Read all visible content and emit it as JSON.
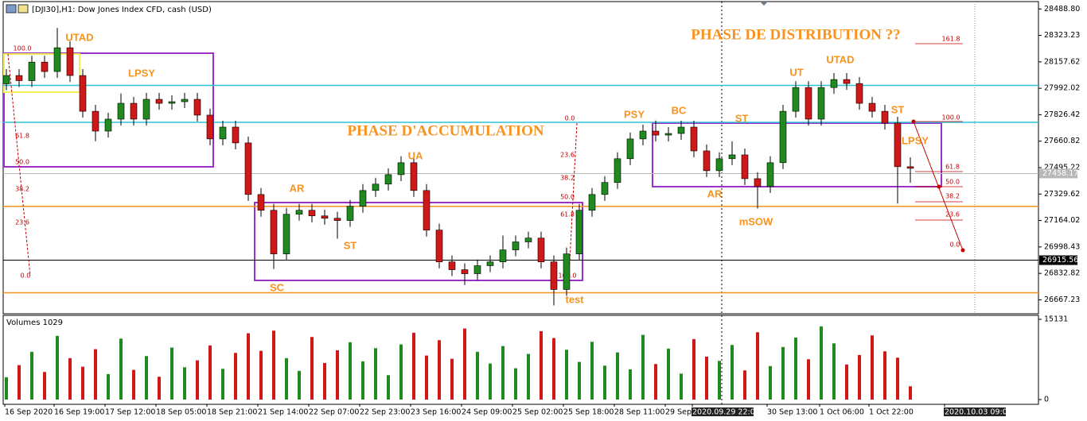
{
  "chart_data": {
    "type": "candlestick",
    "title": "[DJI30],H1: Dow Jones Index CFD, cash (USD)",
    "open": [
      28020,
      28072,
      28040,
      28156,
      28097,
      28246,
      28072,
      27848,
      27724,
      27799,
      27898,
      27799,
      27923,
      27898,
      27908,
      27923,
      27824,
      27675,
      27749,
      27650,
      27327,
      27228,
      26955,
      27203,
      27228,
      27193,
      27178,
      27164,
      27253,
      27352,
      27392,
      27451,
      27526,
      27352,
      27104,
      26905,
      26856,
      26831,
      26881,
      26905,
      26980,
      27030,
      27054,
      26905,
      26732,
      26955,
      27228,
      27327,
      27402,
      27551,
      27675,
      27724,
      27699,
      27709,
      27749,
      27600,
      27476,
      27551,
      27575,
      27426,
      27377,
      27526,
      27848,
      27997,
      27799,
      27997,
      28047,
      28022,
      27898,
      27848,
      27774,
      27501
    ],
    "high": [
      28112,
      28112,
      28196,
      28196,
      28370,
      28286,
      28112,
      27888,
      27839,
      27960,
      27938,
      27963,
      27963,
      27948,
      27963,
      27963,
      27864,
      27789,
      27789,
      27690,
      27367,
      27268,
      27243,
      27268,
      27268,
      27233,
      27218,
      27293,
      27392,
      27432,
      27491,
      27566,
      27566,
      27392,
      27144,
      26945,
      26896,
      26921,
      26945,
      27070,
      27070,
      27094,
      27094,
      26945,
      26995,
      27268,
      27367,
      27442,
      27591,
      27715,
      27764,
      27790,
      27749,
      27789,
      27789,
      27640,
      27591,
      27660,
      27615,
      27466,
      27566,
      27888,
      28037,
      28037,
      28037,
      28087,
      28087,
      28062,
      27938,
      27888,
      27814,
      27560
    ],
    "low": [
      27980,
      28000,
      28000,
      28057,
      28057,
      28032,
      27808,
      27660,
      27684,
      27759,
      27759,
      27759,
      27858,
      27858,
      27868,
      27784,
      27635,
      27635,
      27610,
      27287,
      27188,
      26860,
      26915,
      27163,
      27153,
      27138,
      27050,
      27124,
      27213,
      27312,
      27352,
      27411,
      27312,
      27064,
      26865,
      26816,
      26760,
      26791,
      26841,
      26865,
      26940,
      26990,
      26865,
      26632,
      26692,
      26915,
      27188,
      27287,
      27362,
      27511,
      27635,
      27659,
      27659,
      27669,
      27560,
      27436,
      27436,
      27511,
      27386,
      27240,
      27337,
      27486,
      27808,
      27759,
      27759,
      27957,
      27982,
      27858,
      27808,
      27734,
      27270,
      27400
    ],
    "close": [
      28072,
      28040,
      28156,
      28097,
      28246,
      28072,
      27848,
      27724,
      27799,
      27898,
      27799,
      27923,
      27898,
      27908,
      27923,
      27824,
      27675,
      27749,
      27650,
      27327,
      27228,
      26955,
      27203,
      27228,
      27193,
      27178,
      27164,
      27253,
      27352,
      27392,
      27451,
      27526,
      27352,
      27104,
      26905,
      26856,
      26831,
      26881,
      26905,
      26980,
      27030,
      27054,
      26905,
      26732,
      26955,
      27228,
      27327,
      27402,
      27551,
      27675,
      27724,
      27699,
      27709,
      27749,
      27600,
      27476,
      27551,
      27575,
      27426,
      27377,
      27526,
      27848,
      27997,
      27799,
      27997,
      28047,
      28022,
      27898,
      27848,
      27774,
      27501,
      27491
    ],
    "up_color": "#1f8a1f",
    "down_color": "#d01818",
    "ylim": [
      26580,
      28535
    ],
    "yticks": [
      {
        "value": 28488.8,
        "label": "28488.80"
      },
      28323.23,
      28157.62,
      27992.02,
      27826.42,
      27660.82,
      27495.22,
      27329.62,
      27164.02,
      26998.43,
      26832.82,
      26667.23
    ],
    "x_labels": [
      "16 Sep 2020",
      "16 Sep 19:00",
      "17 Sep 12:00",
      "18 Sep 05:00",
      "18 Sep 21:00",
      "21 Sep 14:00",
      "22 Sep 07:00",
      "22 Sep 23:00",
      "23 Sep 16:00",
      "24 Sep 09:00",
      "25 Sep 02:00",
      "25 Sep 18:00",
      "28 Sep 11:00",
      "29 Sep",
      "2020.09.29 22:00",
      "30 Sep 13:00",
      "1 Oct 06:00",
      "1 Oct 22:00",
      "2020.10.03 09:00"
    ],
    "levels": [
      {
        "value": 28010,
        "color": "#2ec4d6"
      },
      {
        "value": 27779,
        "color": "#2ec4d6"
      },
      {
        "value": 27253,
        "color": "#f7931e"
      },
      {
        "value": 26712,
        "color": "#f7931e"
      }
    ],
    "bid": 27458.17,
    "cursor": 26915.56,
    "annotations": [
      "UTAD",
      "LPSY",
      "PHASE D'ACCUMULATION",
      "PHASE DE DISTRIBUTION ??",
      "AR",
      "ST",
      "SC",
      "UA",
      "test",
      "PSY",
      "BC",
      "ST",
      "AR",
      "mSOW",
      "UT",
      "UTAD",
      "ST",
      "LPSY"
    ],
    "fib_labels": [
      "100.0",
      "61.8",
      "50.0",
      "38.2",
      "23.6",
      "0.0",
      "0.0",
      "23.6",
      "38.2",
      "50.0",
      "61.8",
      "100.0",
      "161.8",
      "100.0",
      "61.8",
      "50.0",
      "38.2",
      "23.6",
      "0.0"
    ],
    "volume": {
      "label": "Volumes 1029",
      "ylim": [
        0,
        15131
      ],
      "yticks": [
        15131,
        0
      ],
      "values": [
        4200,
        6500,
        9000,
        5200,
        12000,
        7800,
        6200,
        9500,
        4800,
        11500,
        5600,
        8200,
        4300,
        9800,
        6100,
        7400,
        10200,
        5800,
        8800,
        12500,
        9200,
        13000,
        7800,
        5400,
        11800,
        6900,
        9300,
        10800,
        7200,
        9700,
        4600,
        10400,
        12600,
        8300,
        11200,
        7700,
        13400,
        9000,
        6800,
        10100,
        5900,
        8600,
        12900,
        11600,
        9400,
        7100,
        10900,
        6400,
        8900,
        5700,
        12200,
        6700,
        9600,
        4900,
        11400,
        8100,
        7300,
        10300,
        5500,
        12700,
        6300,
        9900,
        11700,
        7600,
        13800,
        10600,
        6600,
        8400,
        12100,
        9100,
        7900,
        2500
      ]
    }
  }
}
